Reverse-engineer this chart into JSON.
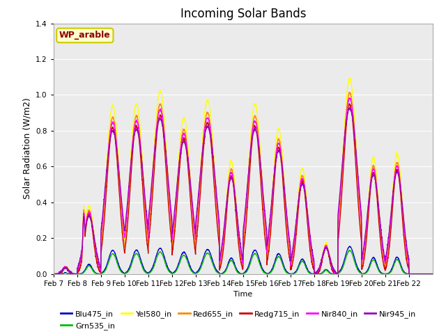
{
  "title": "Incoming Solar Bands",
  "xlabel": "Time",
  "ylabel": "Solar Radiation (W/m2)",
  "ylim": [
    0,
    1.4
  ],
  "annotation": "WP_arable",
  "annotation_color": "#8B0000",
  "annotation_bg": "#FFFFCC",
  "annotation_edge": "#CCCC00",
  "series": [
    "Blu475_in",
    "Grn535_in",
    "Yel580_in",
    "Red655_in",
    "Redg715_in",
    "Nir840_in",
    "Nir945_in"
  ],
  "colors": [
    "#0000CC",
    "#00BB00",
    "#FFFF00",
    "#FF8800",
    "#CC0000",
    "#FF00FF",
    "#9900BB"
  ],
  "x_ticks": [
    "Feb 7",
    "Feb 8",
    "Feb 9",
    "Feb 10",
    "Feb 11",
    "Feb 12",
    "Feb 13",
    "Feb 14",
    "Feb 15",
    "Feb 16",
    "Feb 17",
    "Feb 18",
    "Feb 19",
    "Feb 20",
    "Feb 21",
    "Feb 22"
  ],
  "background_color": "#EBEBEB",
  "grid_color": "#FFFFFF",
  "fig_background": "#FFFFFF",
  "day_peaks_yel": [
    0.04,
    0.38,
    0.94,
    0.95,
    1.02,
    0.87,
    0.97,
    0.63,
    0.95,
    0.81,
    0.59,
    0.17,
    1.09,
    0.65,
    0.67,
    0.0
  ],
  "peak_widths_yel": [
    0.12,
    0.2,
    0.28,
    0.28,
    0.3,
    0.28,
    0.3,
    0.22,
    0.28,
    0.25,
    0.22,
    0.15,
    0.3,
    0.22,
    0.22,
    0.1
  ],
  "peak_offsets": [
    0.5,
    0.5,
    0.5,
    0.5,
    0.5,
    0.5,
    0.5,
    0.5,
    0.5,
    0.5,
    0.5,
    0.5,
    0.5,
    0.5,
    0.5,
    0.5
  ]
}
